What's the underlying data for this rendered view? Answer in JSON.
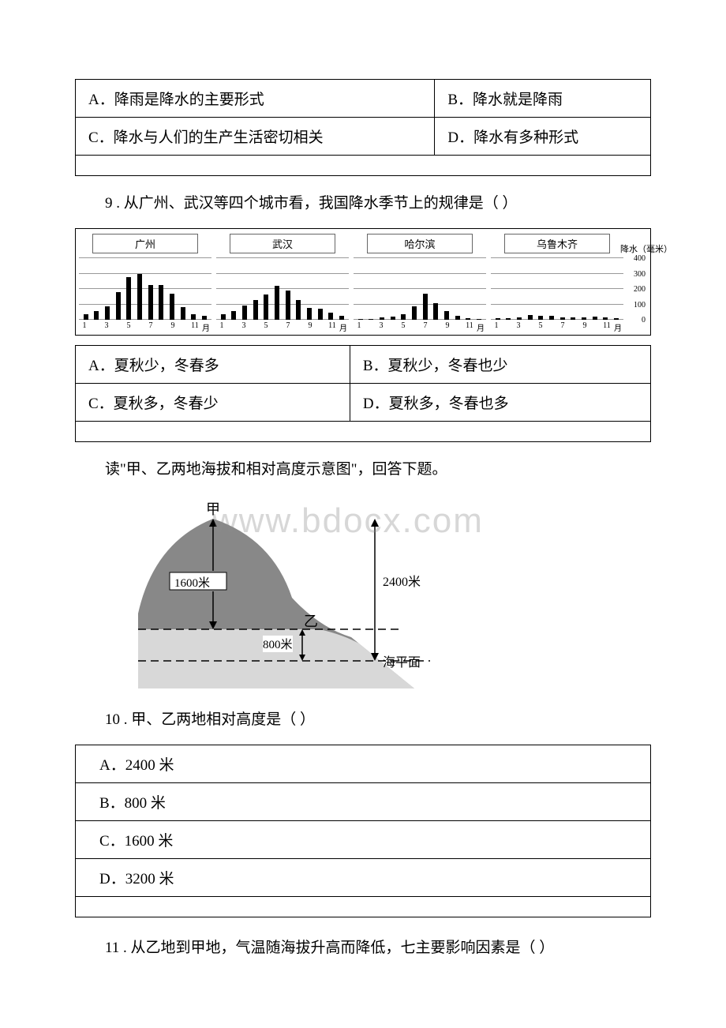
{
  "q8_options": {
    "a": "A．降雨是降水的主要形式",
    "b": "B．降水就是降雨",
    "c": "C．降水与人们的生产生活密切相关",
    "d": "D．降水有多种形式"
  },
  "q9_text": "9 . 从广州、武汉等四个城市看，我国降水季节上的规律是（ ）",
  "q9_options": {
    "a": "A．夏秋少，冬春多",
    "b": "B．夏秋少，冬春也少",
    "c": "C．夏秋多，冬春少",
    "d": "D．夏秋多，冬春也多"
  },
  "chart": {
    "y_axis_title": "降水（毫米）",
    "ymax": 400,
    "ticks": [
      0,
      100,
      200,
      300,
      400
    ],
    "grid_color": "#999999",
    "bar_color": "#000000",
    "xticks": [
      "1",
      "",
      "3",
      "",
      "5",
      "",
      "7",
      "",
      "9",
      "",
      "11",
      "月"
    ],
    "panels": [
      {
        "title": "广州",
        "values": [
          40,
          60,
          90,
          180,
          280,
          300,
          230,
          230,
          170,
          85,
          40,
          30
        ]
      },
      {
        "title": "武汉",
        "values": [
          40,
          60,
          95,
          130,
          165,
          225,
          190,
          130,
          80,
          75,
          50,
          30
        ]
      },
      {
        "title": "哈尔滨",
        "values": [
          5,
          8,
          15,
          25,
          40,
          90,
          170,
          110,
          60,
          30,
          12,
          6
        ]
      },
      {
        "title": "乌鲁木齐",
        "values": [
          10,
          12,
          20,
          35,
          30,
          30,
          20,
          20,
          18,
          22,
          20,
          12
        ]
      }
    ]
  },
  "elevation_intro": "读\"甲、乙两地海拔和相对高度示意图\"，回答下题。",
  "elevation_figure": {
    "label_jia": "甲",
    "label_yi": "乙",
    "label_1600": "1600米",
    "label_800": "800米",
    "label_2400": "2400米",
    "label_sea": "海平面",
    "peak_color": "#6b6b6b",
    "ground_color": "#d0d0d0"
  },
  "watermark": "www.bdocx.com",
  "q10_text": "10 . 甲、乙两地相对高度是（ ）",
  "q10_options": {
    "a": "A．2400 米",
    "b": "B．800 米",
    "c": "C．1600 米",
    "d": "D．3200 米"
  },
  "q11_text": "11 . 从乙地到甲地，气温随海拔升高而降低，七主要影响因素是（ ）"
}
